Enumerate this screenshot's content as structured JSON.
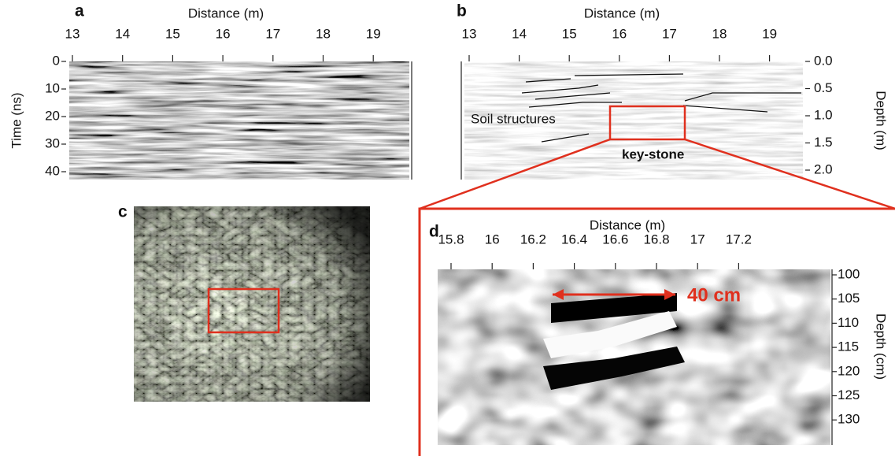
{
  "panels": {
    "a": {
      "label": "a",
      "x_label": "Distance (m)",
      "y_label": "Time (ns)",
      "xticks": [
        13,
        14,
        15,
        16,
        17,
        18,
        19
      ],
      "yticks": [
        0,
        10,
        20,
        30,
        40
      ]
    },
    "b": {
      "label": "b",
      "x_label": "Distance (m)",
      "y_label": "Depth (m)",
      "xticks": [
        13,
        14,
        15,
        16,
        17,
        18,
        19
      ],
      "yticks": [
        {
          "value": 0,
          "label": "0.0"
        },
        {
          "value": 0.5,
          "label": "0.5"
        },
        {
          "value": 1,
          "label": "1.0"
        },
        {
          "value": 1.5,
          "label": "1.5"
        },
        {
          "value": 2,
          "label": "2.0"
        }
      ],
      "annotations": [
        "Soil structures",
        "key-stone"
      ]
    },
    "c": {
      "label": "c"
    },
    "d": {
      "label": "d",
      "x_label": "Distance (m)",
      "y_label": "Depth (cm)",
      "xticks": [
        15.8,
        16,
        16.2,
        16.4,
        16.6,
        16.8,
        17,
        17.2
      ],
      "yticks": [
        100,
        105,
        110,
        115,
        120,
        125,
        130
      ],
      "annotation": "40 cm"
    }
  }
}
